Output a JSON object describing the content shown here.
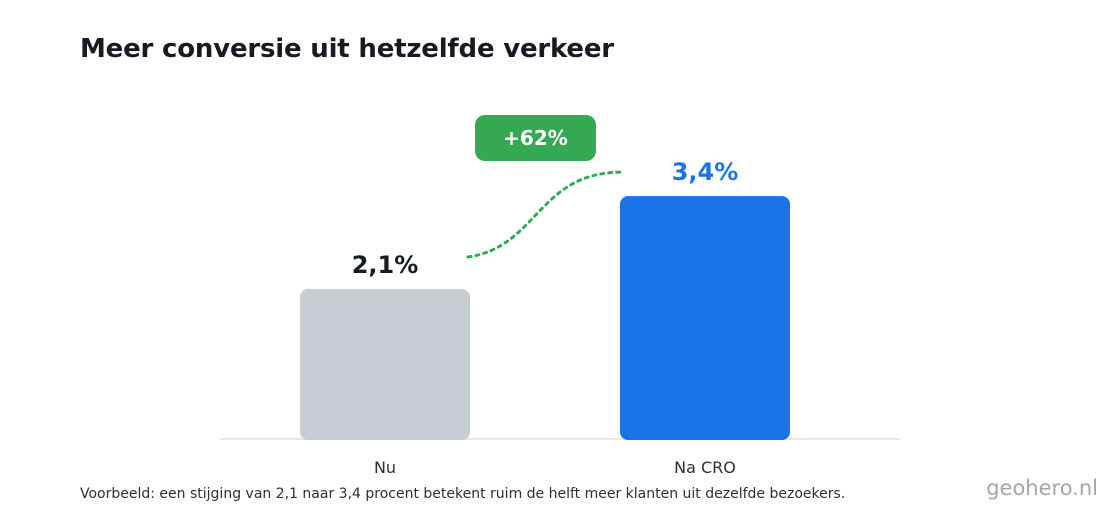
{
  "title": "Meer conversie uit hetzelfde verkeer",
  "caption": "Voorbeeld: een stijging van 2,1 naar 3,4 procent betekent ruim de helft meer klanten uit dezelfde bezoekers.",
  "brand": "geohero.nl",
  "colors": {
    "before": "#c8ccd3",
    "after": "#1b73e8",
    "growth": "#34a853",
    "axis": "#e3e5e8"
  },
  "chart_data": {
    "type": "bar",
    "categories": [
      "Nu",
      "Na CRO"
    ],
    "values": [
      2.1,
      3.4
    ],
    "data_labels": [
      "2,1%",
      "3,4%"
    ],
    "annotation": "+62%",
    "ylim": [
      0,
      4.2
    ],
    "xlabel": "",
    "ylabel": "",
    "grid": false
  }
}
